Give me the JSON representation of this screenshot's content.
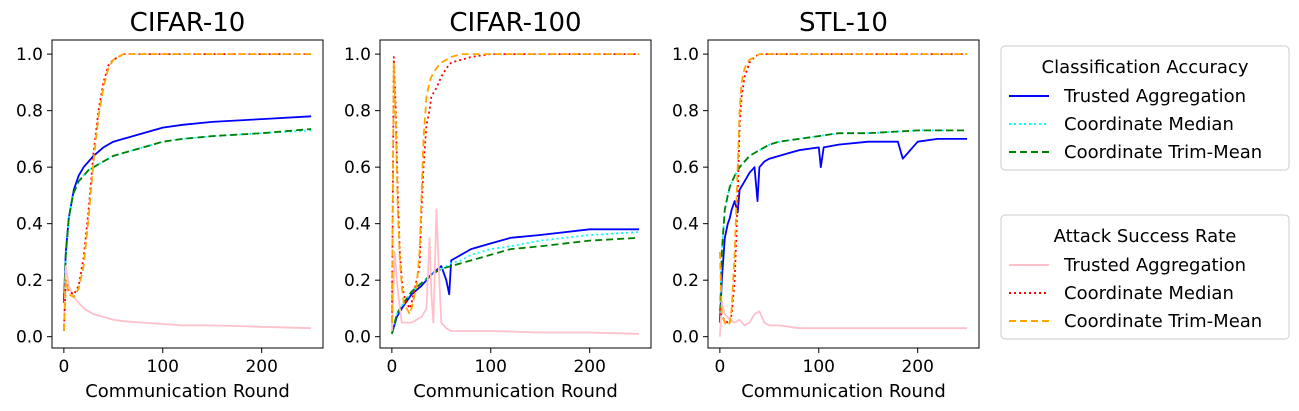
{
  "chart_data": [
    {
      "type": "line",
      "title": "CIFAR-10",
      "xlabel": "Communication Round",
      "ylabel": "",
      "xlim": [
        -12,
        262
      ],
      "ylim": [
        -0.04,
        1.05
      ],
      "xticks": [
        0,
        100,
        200
      ],
      "yticks": [
        0.0,
        0.2,
        0.4,
        0.6,
        0.8,
        1.0
      ],
      "ytick_labels": [
        "0.0",
        "0.2",
        "0.4",
        "0.6",
        "0.8",
        "1.0"
      ],
      "series": [
        {
          "name": "Trusted Aggregation",
          "group": "acc",
          "color": "#0000ff",
          "dash": "",
          "x": [
            0,
            2,
            5,
            8,
            10,
            15,
            20,
            25,
            30,
            40,
            50,
            60,
            80,
            100,
            120,
            150,
            200,
            250
          ],
          "y": [
            0.12,
            0.3,
            0.42,
            0.48,
            0.52,
            0.57,
            0.6,
            0.62,
            0.64,
            0.67,
            0.69,
            0.7,
            0.72,
            0.74,
            0.75,
            0.76,
            0.77,
            0.78
          ]
        },
        {
          "name": "Coordinate Median",
          "group": "acc",
          "color": "#00ffff",
          "dash": "2 3",
          "x": [
            0,
            2,
            5,
            8,
            10,
            15,
            20,
            25,
            30,
            40,
            50,
            60,
            80,
            100,
            120,
            150,
            200,
            250
          ],
          "y": [
            0.12,
            0.29,
            0.42,
            0.48,
            0.51,
            0.55,
            0.57,
            0.59,
            0.6,
            0.62,
            0.64,
            0.65,
            0.67,
            0.69,
            0.7,
            0.71,
            0.72,
            0.73
          ]
        },
        {
          "name": "Coordinate Trim-Mean",
          "group": "acc",
          "color": "#008000",
          "dash": "7 4",
          "x": [
            0,
            2,
            5,
            8,
            10,
            15,
            20,
            25,
            30,
            40,
            50,
            60,
            80,
            100,
            120,
            150,
            200,
            250
          ],
          "y": [
            0.12,
            0.29,
            0.42,
            0.48,
            0.51,
            0.55,
            0.57,
            0.59,
            0.6,
            0.62,
            0.64,
            0.65,
            0.67,
            0.69,
            0.7,
            0.71,
            0.72,
            0.735
          ]
        },
        {
          "name": "Trusted Aggregation",
          "group": "asr",
          "color": "#ffc0cb",
          "dash": "",
          "x": [
            0,
            2,
            5,
            10,
            15,
            20,
            25,
            30,
            40,
            50,
            60,
            80,
            100,
            120,
            150,
            200,
            250
          ],
          "y": [
            0.02,
            0.25,
            0.18,
            0.14,
            0.12,
            0.1,
            0.09,
            0.08,
            0.07,
            0.06,
            0.055,
            0.05,
            0.045,
            0.04,
            0.04,
            0.035,
            0.03
          ]
        },
        {
          "name": "Coordinate Median",
          "group": "asr",
          "color": "#ff0000",
          "dash": "2 3",
          "x": [
            0,
            2,
            5,
            10,
            15,
            20,
            25,
            30,
            35,
            40,
            45,
            50,
            55,
            60,
            70,
            100,
            150,
            200,
            250
          ],
          "y": [
            0.02,
            0.2,
            0.16,
            0.15,
            0.18,
            0.28,
            0.45,
            0.65,
            0.8,
            0.9,
            0.96,
            0.98,
            0.99,
            1.0,
            1.0,
            1.0,
            1.0,
            1.0,
            1.0
          ]
        },
        {
          "name": "Coordinate Trim-Mean",
          "group": "asr",
          "color": "#ffa500",
          "dash": "7 4",
          "x": [
            0,
            2,
            5,
            10,
            15,
            20,
            25,
            30,
            35,
            40,
            45,
            50,
            55,
            60,
            70,
            100,
            150,
            200,
            250
          ],
          "y": [
            0.02,
            0.2,
            0.15,
            0.14,
            0.17,
            0.25,
            0.42,
            0.62,
            0.78,
            0.88,
            0.95,
            0.98,
            0.99,
            1.0,
            1.0,
            1.0,
            1.0,
            1.0,
            1.0
          ]
        }
      ]
    },
    {
      "type": "line",
      "title": "CIFAR-100",
      "xlabel": "Communication Round",
      "ylabel": "",
      "xlim": [
        -12,
        262
      ],
      "ylim": [
        -0.04,
        1.05
      ],
      "xticks": [
        0,
        100,
        200
      ],
      "yticks": [
        0.0,
        0.2,
        0.4,
        0.6,
        0.8,
        1.0
      ],
      "ytick_labels": [
        "0.0",
        "0.2",
        "0.4",
        "0.6",
        "0.8",
        "1.0"
      ],
      "series": [
        {
          "name": "Trusted Aggregation",
          "group": "acc",
          "color": "#0000ff",
          "dash": "",
          "x": [
            0,
            5,
            10,
            20,
            30,
            40,
            50,
            55,
            58,
            60,
            70,
            80,
            100,
            120,
            150,
            200,
            250
          ],
          "y": [
            0.01,
            0.07,
            0.1,
            0.15,
            0.18,
            0.22,
            0.25,
            0.2,
            0.15,
            0.27,
            0.29,
            0.31,
            0.33,
            0.35,
            0.36,
            0.38,
            0.38
          ]
        },
        {
          "name": "Coordinate Median",
          "group": "acc",
          "color": "#00ffff",
          "dash": "2 3",
          "x": [
            0,
            5,
            10,
            20,
            30,
            40,
            50,
            60,
            70,
            80,
            100,
            120,
            150,
            200,
            250
          ],
          "y": [
            0.01,
            0.08,
            0.11,
            0.16,
            0.19,
            0.22,
            0.24,
            0.26,
            0.27,
            0.29,
            0.31,
            0.32,
            0.34,
            0.36,
            0.37
          ]
        },
        {
          "name": "Coordinate Trim-Mean",
          "group": "acc",
          "color": "#008000",
          "dash": "7 4",
          "x": [
            0,
            5,
            10,
            20,
            30,
            40,
            50,
            60,
            70,
            80,
            100,
            120,
            150,
            200,
            250
          ],
          "y": [
            0.01,
            0.08,
            0.11,
            0.16,
            0.19,
            0.22,
            0.24,
            0.25,
            0.26,
            0.27,
            0.29,
            0.31,
            0.32,
            0.34,
            0.35
          ]
        },
        {
          "name": "Trusted Aggregation",
          "group": "asr",
          "color": "#ffc0cb",
          "dash": "",
          "x": [
            0,
            3,
            5,
            8,
            10,
            15,
            20,
            25,
            30,
            35,
            38,
            40,
            42,
            45,
            48,
            50,
            55,
            60,
            80,
            100,
            150,
            200,
            250
          ],
          "y": [
            0.02,
            0.3,
            0.2,
            0.1,
            0.05,
            0.05,
            0.05,
            0.06,
            0.07,
            0.1,
            0.35,
            0.15,
            0.05,
            0.45,
            0.2,
            0.05,
            0.03,
            0.02,
            0.02,
            0.02,
            0.015,
            0.015,
            0.01
          ]
        },
        {
          "name": "Coordinate Median",
          "group": "asr",
          "color": "#ff0000",
          "dash": "2 3",
          "x": [
            0,
            2,
            4,
            6,
            8,
            10,
            12,
            15,
            18,
            20,
            25,
            28,
            30,
            32,
            35,
            38,
            40,
            45,
            50,
            55,
            60,
            70,
            80,
            100,
            150,
            200,
            250
          ],
          "y": [
            0.05,
            0.99,
            0.8,
            0.5,
            0.3,
            0.2,
            0.15,
            0.12,
            0.1,
            0.12,
            0.2,
            0.25,
            0.45,
            0.6,
            0.75,
            0.8,
            0.85,
            0.88,
            0.92,
            0.95,
            0.97,
            0.98,
            0.99,
            1.0,
            1.0,
            1.0,
            1.0
          ]
        },
        {
          "name": "Coordinate Trim-Mean",
          "group": "asr",
          "color": "#ffa500",
          "dash": "7 4",
          "x": [
            0,
            2,
            4,
            6,
            8,
            10,
            12,
            15,
            18,
            20,
            25,
            28,
            30,
            32,
            35,
            38,
            40,
            45,
            50,
            55,
            60,
            70,
            80,
            100,
            150,
            200,
            250
          ],
          "y": [
            0.05,
            0.97,
            0.75,
            0.45,
            0.28,
            0.18,
            0.12,
            0.1,
            0.08,
            0.1,
            0.18,
            0.3,
            0.5,
            0.7,
            0.85,
            0.9,
            0.92,
            0.95,
            0.97,
            0.98,
            0.99,
            1.0,
            1.0,
            1.0,
            1.0,
            1.0,
            1.0
          ]
        }
      ]
    },
    {
      "type": "line",
      "title": "STL-10",
      "xlabel": "Communication Round",
      "ylabel": "",
      "xlim": [
        -12,
        262
      ],
      "ylim": [
        -0.04,
        1.05
      ],
      "xticks": [
        0,
        100,
        200
      ],
      "yticks": [
        0.0,
        0.2,
        0.4,
        0.6,
        0.8,
        1.0
      ],
      "ytick_labels": [
        "0.0",
        "0.2",
        "0.4",
        "0.6",
        "0.8",
        "1.0"
      ],
      "series": [
        {
          "name": "Trusted Aggregation",
          "group": "acc",
          "color": "#0000ff",
          "dash": "",
          "x": [
            0,
            2,
            5,
            8,
            10,
            12,
            15,
            18,
            20,
            25,
            30,
            35,
            38,
            40,
            45,
            50,
            60,
            70,
            80,
            100,
            102,
            105,
            120,
            150,
            180,
            185,
            200,
            220,
            250
          ],
          "y": [
            0.05,
            0.2,
            0.35,
            0.4,
            0.42,
            0.45,
            0.48,
            0.44,
            0.52,
            0.55,
            0.58,
            0.6,
            0.48,
            0.6,
            0.62,
            0.63,
            0.64,
            0.65,
            0.66,
            0.67,
            0.6,
            0.67,
            0.68,
            0.69,
            0.69,
            0.63,
            0.69,
            0.7,
            0.7
          ]
        },
        {
          "name": "Coordinate Median",
          "group": "acc",
          "color": "#00ffff",
          "dash": "2 3",
          "x": [
            0,
            2,
            5,
            8,
            10,
            15,
            20,
            25,
            30,
            40,
            50,
            60,
            80,
            100,
            120,
            150,
            200,
            250
          ],
          "y": [
            0.05,
            0.3,
            0.45,
            0.5,
            0.53,
            0.57,
            0.6,
            0.62,
            0.64,
            0.66,
            0.68,
            0.69,
            0.7,
            0.71,
            0.72,
            0.72,
            0.73,
            0.73
          ]
        },
        {
          "name": "Coordinate Trim-Mean",
          "group": "acc",
          "color": "#008000",
          "dash": "7 4",
          "x": [
            0,
            2,
            5,
            8,
            10,
            15,
            20,
            25,
            30,
            40,
            50,
            60,
            80,
            100,
            120,
            150,
            200,
            250
          ],
          "y": [
            0.05,
            0.3,
            0.45,
            0.5,
            0.53,
            0.57,
            0.6,
            0.62,
            0.64,
            0.66,
            0.68,
            0.69,
            0.7,
            0.71,
            0.72,
            0.72,
            0.73,
            0.73
          ]
        },
        {
          "name": "Trusted Aggregation",
          "group": "asr",
          "color": "#ffc0cb",
          "dash": "",
          "x": [
            0,
            2,
            5,
            10,
            15,
            20,
            25,
            30,
            35,
            40,
            45,
            50,
            60,
            70,
            80,
            100,
            150,
            200,
            250
          ],
          "y": [
            0.0,
            0.12,
            0.08,
            0.06,
            0.05,
            0.06,
            0.04,
            0.05,
            0.08,
            0.09,
            0.05,
            0.04,
            0.04,
            0.035,
            0.03,
            0.03,
            0.03,
            0.03,
            0.03
          ]
        },
        {
          "name": "Coordinate Median",
          "group": "asr",
          "color": "#ff0000",
          "dash": "2 3",
          "x": [
            0,
            2,
            5,
            8,
            10,
            12,
            15,
            18,
            20,
            22,
            25,
            28,
            30,
            35,
            40,
            50,
            100,
            150,
            200,
            250
          ],
          "y": [
            0.1,
            0.07,
            0.06,
            0.05,
            0.05,
            0.08,
            0.2,
            0.5,
            0.75,
            0.85,
            0.92,
            0.95,
            0.97,
            0.99,
            1.0,
            1.0,
            1.0,
            1.0,
            1.0,
            1.0
          ]
        },
        {
          "name": "Coordinate Trim-Mean",
          "group": "asr",
          "color": "#ffa500",
          "dash": "7 4",
          "x": [
            0,
            2,
            5,
            8,
            10,
            12,
            15,
            18,
            20,
            22,
            25,
            28,
            30,
            35,
            40,
            50,
            100,
            150,
            200,
            250
          ],
          "y": [
            0.3,
            0.08,
            0.05,
            0.04,
            0.05,
            0.1,
            0.3,
            0.6,
            0.8,
            0.9,
            0.95,
            0.97,
            0.98,
            0.99,
            1.0,
            1.0,
            1.0,
            1.0,
            1.0,
            1.0
          ]
        }
      ]
    }
  ],
  "legends": [
    {
      "title": "Classification Accuracy",
      "entries": [
        {
          "label": "Trusted Aggregation",
          "color": "#0000ff",
          "dash": ""
        },
        {
          "label": "Coordinate Median",
          "color": "#00ffff",
          "dash": "2 3"
        },
        {
          "label": "Coordinate Trim-Mean",
          "color": "#008000",
          "dash": "7 4"
        }
      ]
    },
    {
      "title": "Attack Success Rate",
      "entries": [
        {
          "label": "Trusted Aggregation",
          "color": "#ffc0cb",
          "dash": ""
        },
        {
          "label": "Coordinate Median",
          "color": "#ff0000",
          "dash": "2 3"
        },
        {
          "label": "Coordinate Trim-Mean",
          "color": "#ffa500",
          "dash": "7 4"
        }
      ]
    }
  ]
}
